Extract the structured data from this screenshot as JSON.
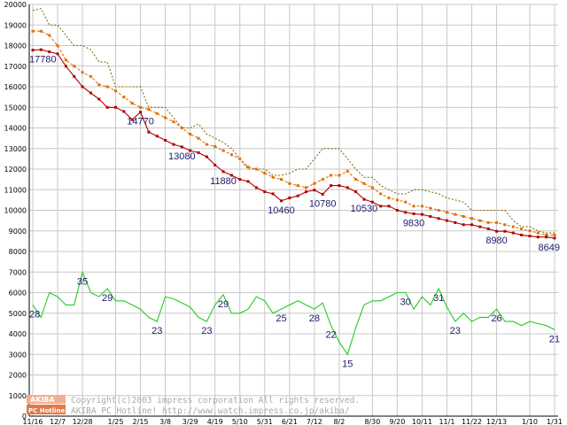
{
  "chart_data": {
    "type": "line",
    "categories": [
      "11/16",
      "11/23",
      "11/30",
      "12/7",
      "12/14",
      "12/21",
      "12/28",
      "1/4",
      "1/11",
      "1/18",
      "1/25",
      "2/1",
      "2/8",
      "2/15",
      "2/22",
      "3/1",
      "3/8",
      "3/15",
      "3/22",
      "3/29",
      "4/5",
      "4/12",
      "4/19",
      "4/26",
      "5/3",
      "5/10",
      "5/17",
      "5/24",
      "5/31",
      "6/7",
      "6/14",
      "6/21",
      "6/28",
      "7/5",
      "7/12",
      "7/19",
      "7/26",
      "8/2",
      "8/9",
      "8/16",
      "8/23",
      "8/30",
      "9/6",
      "9/13",
      "9/20",
      "9/27",
      "10/4",
      "10/11",
      "10/18",
      "10/25",
      "11/1",
      "11/8",
      "11/15",
      "11/22",
      "11/29",
      "12/6",
      "12/13",
      "12/20",
      "12/27",
      "1/3",
      "1/10",
      "1/17",
      "1/24",
      "1/31"
    ],
    "x_tick_labels": [
      "11/16",
      "12/7",
      "12/28",
      "1/25",
      "2/15",
      "3/8",
      "3/29",
      "4/19",
      "5/10",
      "5/31",
      "6/21",
      "7/12",
      "8/2",
      "8/30",
      "9/20",
      "10/11",
      "11/1",
      "11/22",
      "12/13",
      "1/10",
      "1/31"
    ],
    "y_tick_labels": [
      "0",
      "1000",
      "2000",
      "3000",
      "4000",
      "5000",
      "6000",
      "7000",
      "8000",
      "9000",
      "10000",
      "11000",
      "12000",
      "13000",
      "14000",
      "15000",
      "16000",
      "17000",
      "18000",
      "19000",
      "20000"
    ],
    "ylim": [
      0,
      20000
    ],
    "grid": true,
    "series": [
      {
        "color": "#8b6914",
        "style": "dotted",
        "values": [
          19700,
          19800,
          19000,
          19000,
          18500,
          18000,
          18000,
          17800,
          17200,
          17200,
          16000,
          16000,
          16000,
          16000,
          15000,
          15000,
          15000,
          14500,
          14000,
          14000,
          14200,
          13700,
          13500,
          13300,
          13000,
          12500,
          12000,
          12000,
          12000,
          11700,
          11700,
          11800,
          12000,
          12000,
          12500,
          13000,
          13000,
          13000,
          12500,
          12000,
          11600,
          11600,
          11200,
          11000,
          10800,
          10800,
          11000,
          11000,
          10900,
          10800,
          10600,
          10500,
          10400,
          10000,
          10000,
          10000,
          10000,
          10000,
          9500,
          9200,
          9200,
          9000,
          8900,
          8900
        ]
      },
      {
        "color": "#e07000",
        "style": "dashed-markers",
        "values": [
          18700,
          18700,
          18500,
          18000,
          17300,
          17000,
          16700,
          16500,
          16100,
          16000,
          15800,
          15500,
          15200,
          15000,
          14900,
          14700,
          14500,
          14300,
          14000,
          13700,
          13500,
          13200,
          13100,
          12900,
          12700,
          12500,
          12100,
          12000,
          11800,
          11600,
          11500,
          11300,
          11200,
          11100,
          11300,
          11500,
          11700,
          11700,
          11900,
          11500,
          11300,
          11100,
          10800,
          10600,
          10500,
          10400,
          10200,
          10200,
          10100,
          10000,
          9900,
          9800,
          9700,
          9600,
          9500,
          9400,
          9400,
          9300,
          9200,
          9100,
          9000,
          8900,
          8800,
          8800
        ]
      },
      {
        "color": "#b00000",
        "style": "solid-markers",
        "values": [
          17780,
          17800,
          17700,
          17600,
          17000,
          16500,
          16000,
          15700,
          15400,
          15000,
          15000,
          14800,
          14400,
          14770,
          13800,
          13600,
          13400,
          13200,
          13080,
          12900,
          12800,
          12600,
          12200,
          11880,
          11700,
          11500,
          11400,
          11100,
          10900,
          10800,
          10460,
          10600,
          10700,
          10900,
          10980,
          10780,
          11200,
          11200,
          11100,
          10900,
          10530,
          10400,
          10200,
          10200,
          10000,
          9900,
          9830,
          9800,
          9700,
          9600,
          9500,
          9400,
          9300,
          9300,
          9200,
          9100,
          8980,
          8980,
          8900,
          8800,
          8750,
          8700,
          8700,
          8649
        ]
      },
      {
        "color": "#22cc22",
        "style": "solid",
        "values": [
          5400,
          4800,
          6000,
          5800,
          5400,
          5400,
          7000,
          6000,
          5800,
          6200,
          5600,
          5600,
          5400,
          5200,
          4800,
          4600,
          5800,
          5700,
          5500,
          5300,
          4800,
          4600,
          5400,
          5900,
          5000,
          5000,
          5200,
          5800,
          5600,
          5000,
          5200,
          5400,
          5600,
          5400,
          5200,
          5500,
          4400,
          3600,
          3000,
          4300,
          5400,
          5600,
          5600,
          5800,
          6000,
          6000,
          5200,
          5800,
          5400,
          6200,
          5300,
          4600,
          5000,
          4600,
          4800,
          4800,
          5200,
          4600,
          4600,
          4400,
          4600,
          4500,
          4400,
          4200
        ]
      }
    ],
    "data_labels": [
      {
        "text": "17780",
        "series": 2,
        "index": 0
      },
      {
        "text": "14770",
        "series": 2,
        "index": 13
      },
      {
        "text": "13080",
        "series": 2,
        "index": 18
      },
      {
        "text": "11880",
        "series": 2,
        "index": 23
      },
      {
        "text": "10460",
        "series": 2,
        "index": 30
      },
      {
        "text": "10780",
        "series": 2,
        "index": 35
      },
      {
        "text": "10530",
        "series": 2,
        "index": 40
      },
      {
        "text": "9830",
        "series": 2,
        "index": 46
      },
      {
        "text": "8980",
        "series": 2,
        "index": 56
      },
      {
        "text": "8649",
        "series": 2,
        "index": 63
      },
      {
        "text": "28",
        "series": 3,
        "index": 0
      },
      {
        "text": "35",
        "series": 3,
        "index": 6
      },
      {
        "text": "29",
        "series": 3,
        "index": 9
      },
      {
        "text": "23",
        "series": 3,
        "index": 15
      },
      {
        "text": "23",
        "series": 3,
        "index": 21
      },
      {
        "text": "29",
        "series": 3,
        "index": 23
      },
      {
        "text": "25",
        "series": 3,
        "index": 30
      },
      {
        "text": "28",
        "series": 3,
        "index": 34
      },
      {
        "text": "22",
        "series": 3,
        "index": 36
      },
      {
        "text": "15",
        "series": 3,
        "index": 38
      },
      {
        "text": "30",
        "series": 3,
        "index": 45
      },
      {
        "text": "31",
        "series": 3,
        "index": 49
      },
      {
        "text": "23",
        "series": 3,
        "index": 51
      },
      {
        "text": "26",
        "series": 3,
        "index": 56
      },
      {
        "text": "21",
        "series": 3,
        "index": 63
      }
    ]
  },
  "watermark": {
    "line1": "Copyright(c)2003 impress corporation All rights reserved.",
    "line2": "AKIBA PC Hotline!  http://www.watch.impress.co.jp/akiba/",
    "logo_top": "AKIBA",
    "logo_bottom": "PC Hotline!"
  }
}
